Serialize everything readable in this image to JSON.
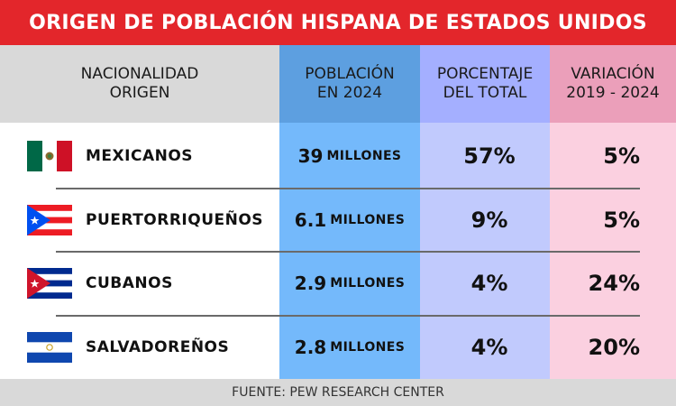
{
  "title": "ORIGEN DE POBLACIÓN HISPANA DE ESTADOS UNIDOS",
  "headers": {
    "nationality": "NACIONALIDAD\nORIGEN",
    "population": "POBLACIÓN\nEN 2024",
    "percentage": "PORCENTAJE\nDEL TOTAL",
    "variation": "VARIACIÓN\n2019 - 2024"
  },
  "colors": {
    "title_bg": "#e3262b",
    "header_bg": "#d9d9d9",
    "pop_col_bg": "#74b9fb",
    "pop_header_bg": "#5d9fe0",
    "pct_col_bg": "#c1cafd",
    "pct_header_bg": "#a4afff",
    "var_col_bg": "#fbd0e0",
    "var_header_bg": "#eb9fba"
  },
  "rows": [
    {
      "country": "MEXICANOS",
      "pop_value": "39",
      "pop_unit": "MILLONES",
      "percent": "57%",
      "variation": "5%",
      "flag": "mexico-flag-icon"
    },
    {
      "country": "PUERTORRIQUEÑOS",
      "pop_value": "6.1",
      "pop_unit": "MILLONES",
      "percent": "9%",
      "variation": "5%",
      "flag": "puerto-rico-flag-icon"
    },
    {
      "country": "CUBANOS",
      "pop_value": "2.9",
      "pop_unit": "MILLONES",
      "percent": "4%",
      "variation": "24%",
      "flag": "cuba-flag-icon"
    },
    {
      "country": "SALVADOREÑOS",
      "pop_value": "2.8",
      "pop_unit": "MILLONES",
      "percent": "4%",
      "variation": "20%",
      "flag": "el-salvador-flag-icon"
    }
  ],
  "chart_data": {
    "type": "table",
    "title": "ORIGEN DE POBLACIÓN HISPANA DE ESTADOS UNIDOS",
    "columns": [
      "NACIONALIDAD ORIGEN",
      "POBLACIÓN EN 2024",
      "PORCENTAJE DEL TOTAL",
      "VARIACIÓN 2019 - 2024"
    ],
    "categories": [
      "MEXICANOS",
      "PUERTORRIQUEÑOS",
      "CUBANOS",
      "SALVADOREÑOS"
    ],
    "series": [
      {
        "name": "Población en 2024 (millones)",
        "values": [
          39,
          6.1,
          2.9,
          2.8
        ]
      },
      {
        "name": "Porcentaje del total (%)",
        "values": [
          57,
          9,
          4,
          4
        ]
      },
      {
        "name": "Variación 2019 - 2024 (%)",
        "values": [
          5,
          5,
          24,
          20
        ]
      }
    ],
    "source": "FUENTE: PEW RESEARCH CENTER"
  },
  "footer": "FUENTE: PEW RESEARCH CENTER"
}
